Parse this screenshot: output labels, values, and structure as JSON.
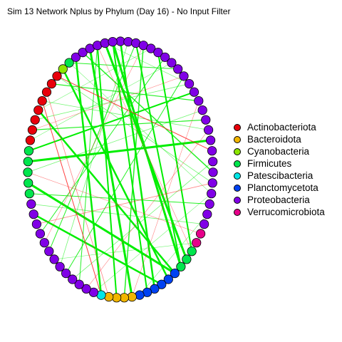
{
  "title": "Sim 13 Network Nplus by Phylum (Day 16) - No Input Filter",
  "legend": [
    {
      "label": "Actinobacteriota",
      "color": "#e8000b"
    },
    {
      "label": "Bacteroidota",
      "color": "#f2b600"
    },
    {
      "label": "Cyanobacteria",
      "color": "#8ce600"
    },
    {
      "label": "Firmicutes",
      "color": "#00e64d"
    },
    {
      "label": "Patescibacteria",
      "color": "#00e6e6"
    },
    {
      "label": "Planctomycetota",
      "color": "#0042f2"
    },
    {
      "label": "Proteobacteria",
      "color": "#8000e6"
    },
    {
      "label": "Verrucomicrobiota",
      "color": "#e6008a"
    }
  ],
  "colors": {
    "positive_edge": "#00ee00",
    "negative_edge": "#ff2020",
    "node_border": "#000000"
  },
  "nodes": [
    {
      "phylum": "Proteobacteria"
    },
    {
      "phylum": "Proteobacteria"
    },
    {
      "phylum": "Proteobacteria"
    },
    {
      "phylum": "Proteobacteria"
    },
    {
      "phylum": "Proteobacteria"
    },
    {
      "phylum": "Proteobacteria"
    },
    {
      "phylum": "Proteobacteria"
    },
    {
      "phylum": "Proteobacteria"
    },
    {
      "phylum": "Proteobacteria"
    },
    {
      "phylum": "Proteobacteria"
    },
    {
      "phylum": "Proteobacteria"
    },
    {
      "phylum": "Proteobacteria"
    },
    {
      "phylum": "Proteobacteria"
    },
    {
      "phylum": "Proteobacteria"
    },
    {
      "phylum": "Proteobacteria"
    },
    {
      "phylum": "Proteobacteria"
    },
    {
      "phylum": "Proteobacteria"
    },
    {
      "phylum": "Proteobacteria"
    },
    {
      "phylum": "Proteobacteria"
    },
    {
      "phylum": "Proteobacteria"
    },
    {
      "phylum": "Proteobacteria"
    },
    {
      "phylum": "Proteobacteria"
    },
    {
      "phylum": "Proteobacteria"
    },
    {
      "phylum": "Proteobacteria"
    },
    {
      "phylum": "Proteobacteria"
    },
    {
      "phylum": "Verrucomicrobiota"
    },
    {
      "phylum": "Verrucomicrobiota"
    },
    {
      "phylum": "Firmicutes"
    },
    {
      "phylum": "Firmicutes"
    },
    {
      "phylum": "Firmicutes"
    },
    {
      "phylum": "Planctomycetota"
    },
    {
      "phylum": "Planctomycetota"
    },
    {
      "phylum": "Planctomycetota"
    },
    {
      "phylum": "Planctomycetota"
    },
    {
      "phylum": "Planctomycetota"
    },
    {
      "phylum": "Planctomycetota"
    },
    {
      "phylum": "Bacteroidota"
    },
    {
      "phylum": "Bacteroidota"
    },
    {
      "phylum": "Bacteroidota"
    },
    {
      "phylum": "Bacteroidota"
    },
    {
      "phylum": "Patescibacteria"
    },
    {
      "phylum": "Proteobacteria"
    },
    {
      "phylum": "Proteobacteria"
    },
    {
      "phylum": "Proteobacteria"
    },
    {
      "phylum": "Proteobacteria"
    },
    {
      "phylum": "Proteobacteria"
    },
    {
      "phylum": "Proteobacteria"
    },
    {
      "phylum": "Proteobacteria"
    },
    {
      "phylum": "Proteobacteria"
    },
    {
      "phylum": "Proteobacteria"
    },
    {
      "phylum": "Proteobacteria"
    },
    {
      "phylum": "Proteobacteria"
    },
    {
      "phylum": "Proteobacteria"
    },
    {
      "phylum": "Proteobacteria"
    },
    {
      "phylum": "Firmicutes"
    },
    {
      "phylum": "Firmicutes"
    },
    {
      "phylum": "Firmicutes"
    },
    {
      "phylum": "Firmicutes"
    },
    {
      "phylum": "Firmicutes"
    },
    {
      "phylum": "Actinobacteriota"
    },
    {
      "phylum": "Actinobacteriota"
    },
    {
      "phylum": "Actinobacteriota"
    },
    {
      "phylum": "Actinobacteriota"
    },
    {
      "phylum": "Actinobacteriota"
    },
    {
      "phylum": "Actinobacteriota"
    },
    {
      "phylum": "Actinobacteriota"
    },
    {
      "phylum": "Actinobacteriota"
    },
    {
      "phylum": "Cyanobacteria"
    },
    {
      "phylum": "Firmicutes"
    },
    {
      "phylum": "Proteobacteria"
    },
    {
      "phylum": "Proteobacteria"
    },
    {
      "phylum": "Proteobacteria"
    },
    {
      "phylum": "Proteobacteria"
    },
    {
      "phylum": "Proteobacteria"
    },
    {
      "phylum": "Proteobacteria"
    }
  ],
  "edges": [
    {
      "source": 74,
      "target": 29,
      "sign": "positive",
      "weight": 3
    },
    {
      "source": 73,
      "target": 28,
      "sign": "positive",
      "weight": 3
    },
    {
      "source": 71,
      "target": 36,
      "sign": "positive",
      "weight": 3
    },
    {
      "source": 69,
      "target": 40,
      "sign": "positive",
      "weight": 2.5
    },
    {
      "source": 67,
      "target": 31,
      "sign": "positive",
      "weight": 2.5
    },
    {
      "source": 62,
      "target": 30,
      "sign": "positive",
      "weight": 2.5
    },
    {
      "source": 57,
      "target": 16,
      "sign": "positive",
      "weight": 3
    },
    {
      "source": 55,
      "target": 30,
      "sign": "positive",
      "weight": 3
    },
    {
      "source": 52,
      "target": 32,
      "sign": "positive",
      "weight": 2.5
    },
    {
      "source": 0,
      "target": 33,
      "sign": "positive",
      "weight": 2.5
    },
    {
      "source": 2,
      "target": 29,
      "sign": "positive",
      "weight": 2
    },
    {
      "source": 5,
      "target": 27,
      "sign": "positive",
      "weight": 2
    },
    {
      "source": 58,
      "target": 11,
      "sign": "positive",
      "weight": 2
    },
    {
      "source": 72,
      "target": 38,
      "sign": "positive",
      "weight": 2
    },
    {
      "source": 74,
      "target": 34,
      "sign": "positive",
      "weight": 2
    },
    {
      "source": 3,
      "target": 37,
      "sign": "positive",
      "weight": 1.5
    },
    {
      "source": 70,
      "target": 19,
      "sign": "positive",
      "weight": 1.5
    },
    {
      "source": 65,
      "target": 12,
      "sign": "positive",
      "weight": 1.2
    },
    {
      "source": 60,
      "target": 14,
      "sign": "positive",
      "weight": 1.2
    },
    {
      "source": 54,
      "target": 22,
      "sign": "positive",
      "weight": 1
    },
    {
      "source": 50,
      "target": 6,
      "sign": "positive",
      "weight": 1
    },
    {
      "source": 48,
      "target": 2,
      "sign": "positive",
      "weight": 1
    },
    {
      "source": 45,
      "target": 9,
      "sign": "positive",
      "weight": 1
    },
    {
      "source": 43,
      "target": 72,
      "sign": "positive",
      "weight": 1
    },
    {
      "source": 8,
      "target": 68,
      "sign": "positive",
      "weight": 1
    },
    {
      "source": 10,
      "target": 61,
      "sign": "positive",
      "weight": 0.8
    },
    {
      "source": 13,
      "target": 56,
      "sign": "positive",
      "weight": 0.8
    },
    {
      "source": 15,
      "target": 63,
      "sign": "positive",
      "weight": 0.8
    },
    {
      "source": 20,
      "target": 66,
      "sign": "positive",
      "weight": 0.8
    },
    {
      "source": 24,
      "target": 53,
      "sign": "positive",
      "weight": 0.8
    },
    {
      "source": 1,
      "target": 46,
      "sign": "positive",
      "weight": 0.8
    },
    {
      "source": 18,
      "target": 44,
      "sign": "positive",
      "weight": 0.8
    },
    {
      "source": 7,
      "target": 59,
      "sign": "positive",
      "weight": 0.6
    },
    {
      "source": 4,
      "target": 62,
      "sign": "positive",
      "weight": 0.6
    },
    {
      "source": 23,
      "target": 35,
      "sign": "positive",
      "weight": 0.6
    },
    {
      "source": 21,
      "target": 41,
      "sign": "positive",
      "weight": 0.6
    },
    {
      "source": 26,
      "target": 47,
      "sign": "positive",
      "weight": 0.6
    },
    {
      "source": 73,
      "target": 10,
      "sign": "positive",
      "weight": 0.6
    },
    {
      "source": 68,
      "target": 21,
      "sign": "positive",
      "weight": 0.6
    },
    {
      "source": 66,
      "target": 17,
      "sign": "negative",
      "weight": 1
    },
    {
      "source": 63,
      "target": 40,
      "sign": "negative",
      "weight": 1
    },
    {
      "source": 64,
      "target": 39,
      "sign": "negative",
      "weight": 0.8
    },
    {
      "source": 20,
      "target": 51,
      "sign": "negative",
      "weight": 0.8
    },
    {
      "source": 72,
      "target": 27,
      "sign": "negative",
      "weight": 0.6
    },
    {
      "source": 3,
      "target": 49,
      "sign": "negative",
      "weight": 0.6
    },
    {
      "source": 9,
      "target": 60,
      "sign": "negative",
      "weight": 0.6
    },
    {
      "source": 15,
      "target": 42,
      "sign": "negative",
      "weight": 0.6
    },
    {
      "source": 25,
      "target": 56,
      "sign": "negative",
      "weight": 0.6
    },
    {
      "source": 12,
      "target": 36,
      "sign": "negative",
      "weight": 0.6
    }
  ]
}
